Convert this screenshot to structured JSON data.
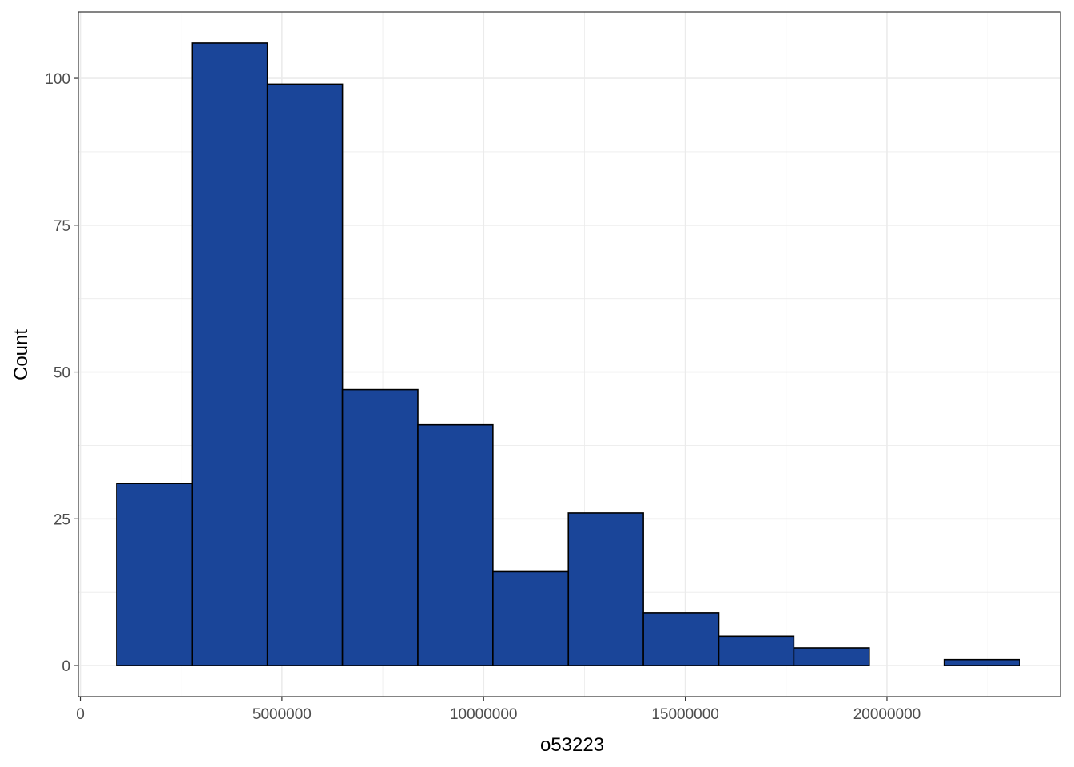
{
  "chart_data": {
    "type": "bar",
    "subtype": "histogram",
    "xlabel": "o53223",
    "ylabel": "Count",
    "xlim": [
      -50000,
      24300000
    ],
    "ylim": [
      -5.3,
      111.3
    ],
    "x_ticks": [
      0,
      5000000,
      10000000,
      15000000,
      20000000
    ],
    "x_tick_labels": [
      "0",
      "5000000",
      "10000000",
      "15000000",
      "20000000"
    ],
    "y_ticks": [
      0,
      25,
      50,
      75,
      100
    ],
    "y_tick_labels": [
      "0",
      "25",
      "50",
      "75",
      "100"
    ],
    "bins": [
      {
        "x0": 900000,
        "x1": 2770000,
        "count": 31
      },
      {
        "x0": 2770000,
        "x1": 4640000,
        "count": 106
      },
      {
        "x0": 4640000,
        "x1": 6500000,
        "count": 99
      },
      {
        "x0": 6500000,
        "x1": 8370000,
        "count": 47
      },
      {
        "x0": 8370000,
        "x1": 10230000,
        "count": 41
      },
      {
        "x0": 10230000,
        "x1": 12100000,
        "count": 16
      },
      {
        "x0": 12100000,
        "x1": 13960000,
        "count": 26
      },
      {
        "x0": 13960000,
        "x1": 15830000,
        "count": 9
      },
      {
        "x0": 15830000,
        "x1": 17690000,
        "count": 5
      },
      {
        "x0": 17690000,
        "x1": 19560000,
        "count": 3
      },
      {
        "x0": 19560000,
        "x1": 21420000,
        "count": 0
      },
      {
        "x0": 21420000,
        "x1": 23290000,
        "count": 1
      }
    ],
    "grid": true,
    "colors": {
      "bar_fill": "#1a4599",
      "bar_stroke": "#000000",
      "grid": "#ebebeb",
      "panel_border": "#333333",
      "tick_text": "#4d4d4d"
    }
  }
}
